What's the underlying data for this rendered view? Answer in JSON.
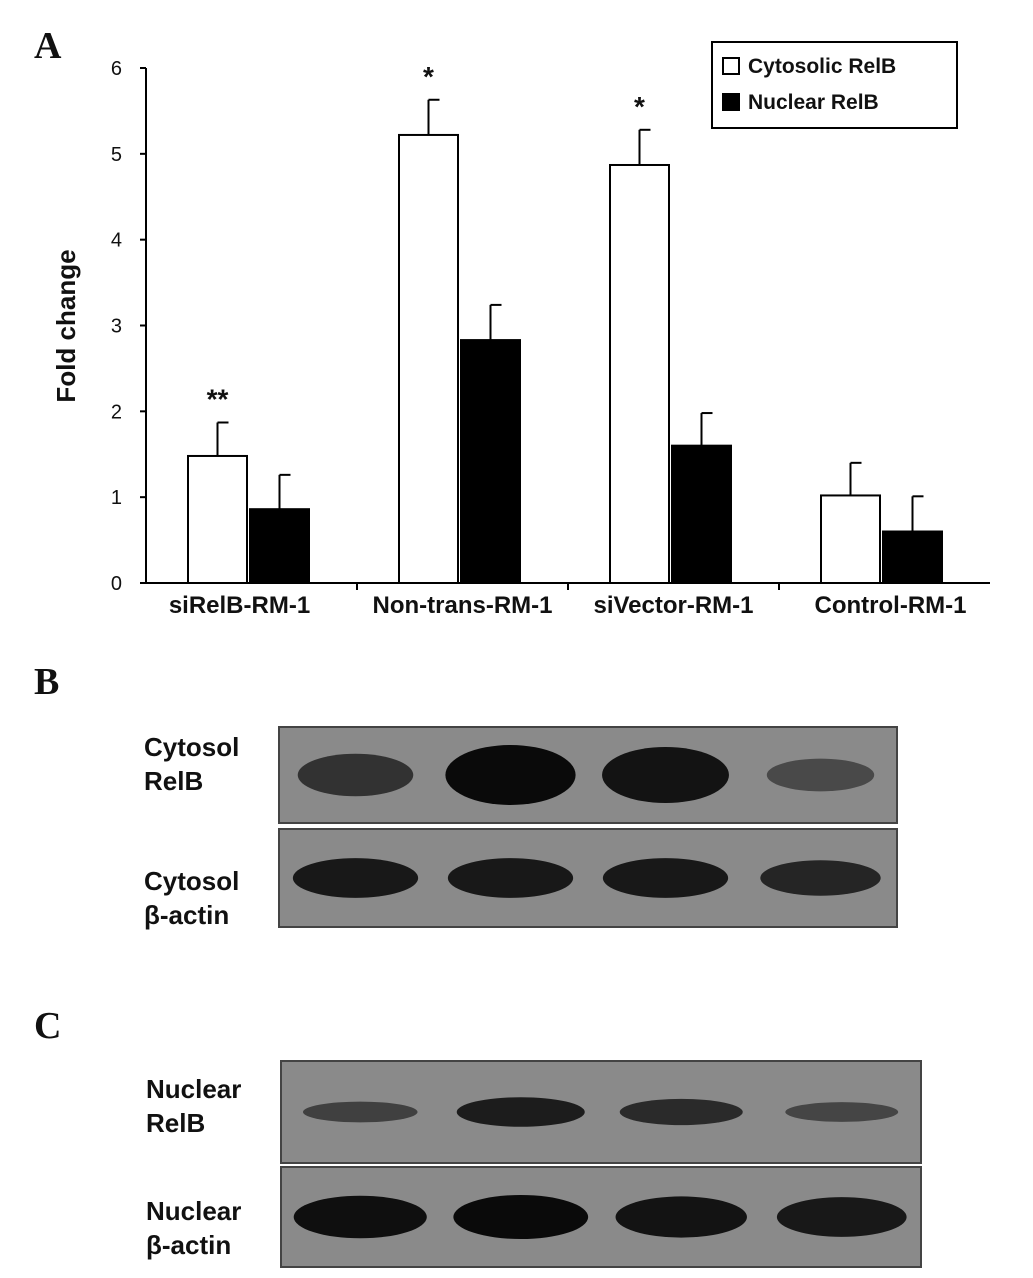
{
  "panels": {
    "a": "A",
    "b": "B",
    "c": "C"
  },
  "chart_data": {
    "type": "bar",
    "title": "",
    "xlabel": "",
    "ylabel": "Fold change",
    "ylim": [
      0,
      6
    ],
    "yticks": [
      "0",
      "1",
      "2",
      "3",
      "4",
      "5",
      "6"
    ],
    "categories": [
      "siRelB-RM-1",
      "Non-trans-RM-1",
      "siVector-RM-1",
      "Control-RM-1"
    ],
    "series": [
      {
        "name": "Cytosolic RelB",
        "color": "#ffffff",
        "values": [
          1.48,
          5.22,
          4.87,
          1.02
        ],
        "errors": [
          0.39,
          0.41,
          0.41,
          0.38
        ]
      },
      {
        "name": "Nuclear RelB",
        "color": "#000000",
        "values": [
          0.86,
          2.83,
          1.6,
          0.6
        ],
        "errors": [
          0.4,
          0.41,
          0.38,
          0.41
        ]
      }
    ],
    "annotations": [
      "**",
      "*",
      "*",
      ""
    ],
    "legend": "top-right",
    "grid": false
  },
  "blots": {
    "b": {
      "rows": [
        {
          "label_line1": "Cytosol",
          "label_line2": "RelB",
          "band_intensity": [
            0.55,
            1.0,
            0.9,
            0.3
          ]
        },
        {
          "label_line1": "Cytosol",
          "label_line2": "β-actin",
          "band_intensity": [
            0.85,
            0.85,
            0.85,
            0.7
          ]
        }
      ]
    },
    "c": {
      "rows": [
        {
          "label_line1": "Nuclear",
          "label_line2": "RelB",
          "band_intensity": [
            0.4,
            0.8,
            0.65,
            0.35
          ]
        },
        {
          "label_line1": "Nuclear",
          "label_line2": "β-actin",
          "band_intensity": [
            0.95,
            1.0,
            0.9,
            0.85
          ]
        }
      ]
    }
  }
}
